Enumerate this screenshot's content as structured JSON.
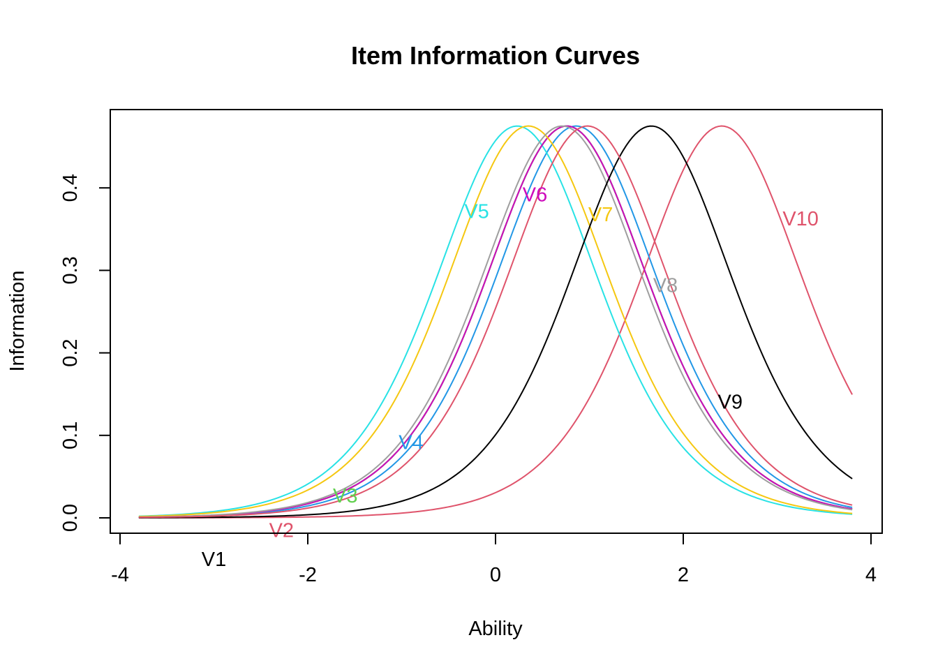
{
  "chart_data": {
    "type": "line",
    "title": "Item Information Curves",
    "xlabel": "Ability",
    "ylabel": "Information",
    "xlim": [
      -4,
      4
    ],
    "ylim": [
      0,
      0.47
    ],
    "x_ticks": [
      -4,
      -2,
      0,
      2,
      4
    ],
    "y_ticks": [
      0.0,
      0.1,
      0.2,
      0.3,
      0.4
    ],
    "x_tick_labels": [
      "-4",
      "-2",
      "0",
      "2",
      "4"
    ],
    "y_tick_labels": [
      "0.0",
      "0.1",
      "0.2",
      "0.3",
      "0.4"
    ],
    "x_range": [
      -3.8,
      3.8
    ],
    "peak_information": 0.475,
    "model_scale": 1.7,
    "grid": false,
    "series": [
      {
        "name": "V1",
        "difficulty": 0.76,
        "color": "#000000",
        "label_at": [
          -3.0,
          -0.05
        ]
      },
      {
        "name": "V2",
        "difficulty": 2.41,
        "color": "#DF536B",
        "label_at": [
          -2.28,
          -0.015
        ]
      },
      {
        "name": "V3",
        "difficulty": 0.76,
        "color": "#61D04F",
        "label_at": [
          -1.6,
          0.027
        ]
      },
      {
        "name": "V4",
        "difficulty": 0.86,
        "color": "#2297E6",
        "label_at": [
          -0.9,
          0.092
        ]
      },
      {
        "name": "V5",
        "difficulty": 0.23,
        "color": "#28E2E5",
        "label_at": [
          -0.2,
          0.372
        ]
      },
      {
        "name": "V6",
        "difficulty": 0.76,
        "color": "#CD0BBC",
        "label_at": [
          0.42,
          0.392
        ]
      },
      {
        "name": "V7",
        "difficulty": 0.35,
        "color": "#F5C710",
        "label_at": [
          1.12,
          0.368
        ]
      },
      {
        "name": "V8",
        "difficulty": 0.71,
        "color": "#9E9E9E",
        "label_at": [
          1.81,
          0.282
        ]
      },
      {
        "name": "V9",
        "difficulty": 1.66,
        "color": "#000000",
        "label_at": [
          2.5,
          0.141
        ]
      },
      {
        "name": "V10",
        "difficulty": 0.98,
        "color": "#DF536B",
        "label_at": [
          3.25,
          0.363
        ]
      }
    ]
  }
}
